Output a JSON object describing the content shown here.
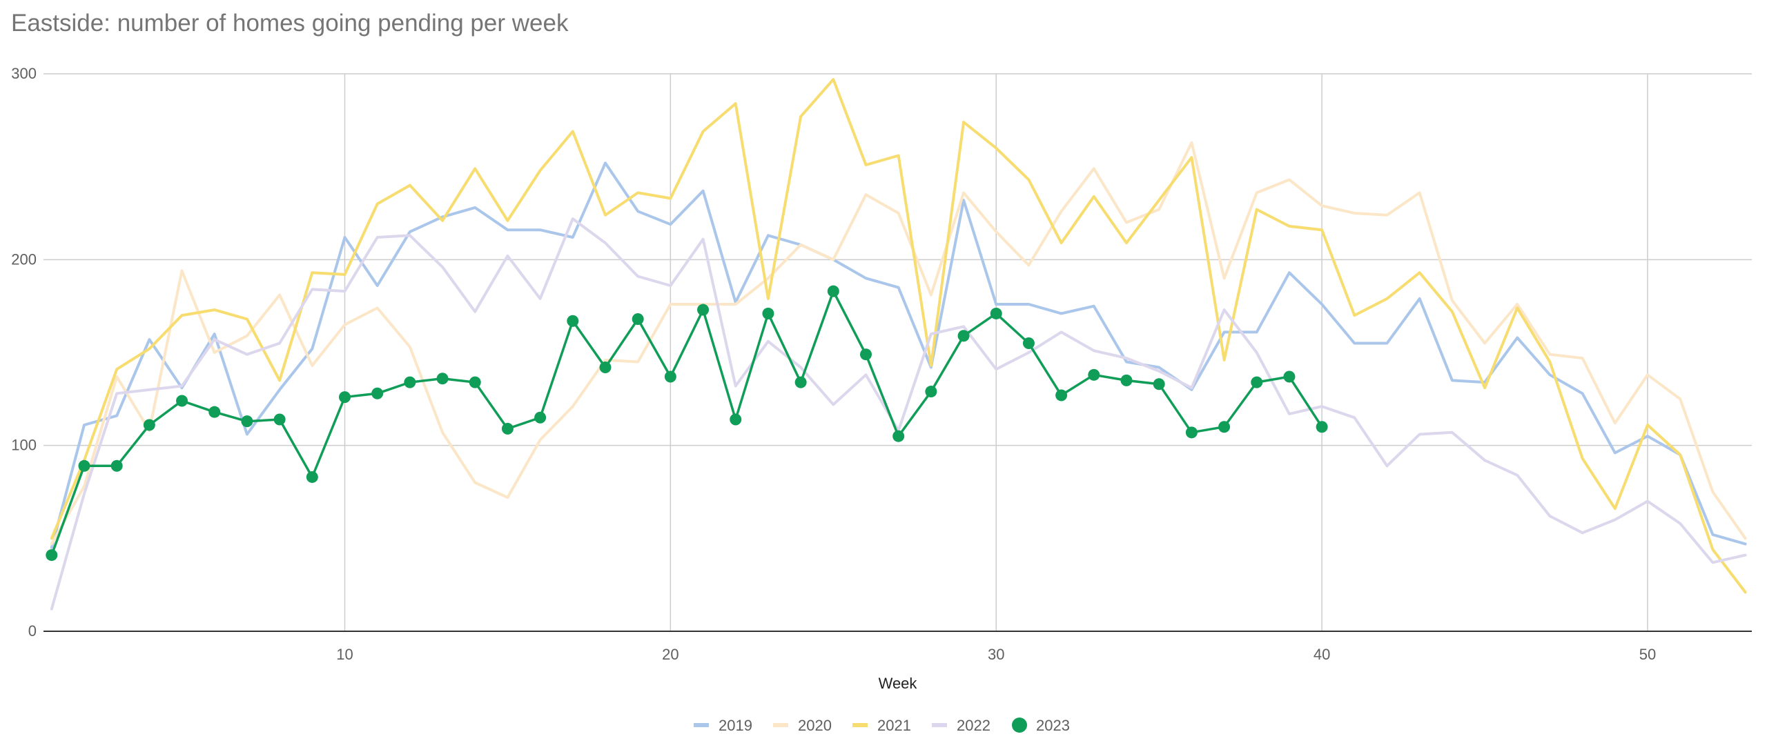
{
  "chart_data": {
    "type": "line",
    "title": "Eastside: number of homes going pending per week",
    "xlabel": "Week",
    "ylabel": "",
    "xlim": [
      0.75,
      53.2
    ],
    "ylim": [
      0,
      300
    ],
    "xticks": [
      10,
      20,
      30,
      40,
      50
    ],
    "yticks": [
      0,
      100,
      200,
      300
    ],
    "grid": true,
    "legend_position": "bottom",
    "series": [
      {
        "name": "2019",
        "color": "#aac6ea",
        "markers": false,
        "x": [
          1,
          2,
          3,
          4,
          5,
          6,
          7,
          8,
          9,
          10,
          11,
          12,
          13,
          14,
          15,
          16,
          17,
          18,
          19,
          20,
          21,
          22,
          23,
          24,
          25,
          26,
          27,
          28,
          29,
          30,
          31,
          32,
          33,
          34,
          35,
          36,
          37,
          38,
          39,
          40,
          41,
          42,
          43,
          44,
          45,
          46,
          47,
          48,
          49,
          50,
          51,
          52,
          53
        ],
        "values": [
          45,
          111,
          116,
          157,
          131,
          160,
          106,
          130,
          152,
          212,
          186,
          215,
          223,
          228,
          216,
          216,
          212,
          252,
          226,
          219,
          237,
          177,
          213,
          208,
          200,
          190,
          185,
          142,
          232,
          176,
          176,
          171,
          175,
          145,
          142,
          130,
          161,
          161,
          193,
          176,
          155,
          155,
          179,
          135,
          134,
          158,
          138,
          128,
          96,
          105,
          95,
          52,
          47
        ]
      },
      {
        "name": "2020",
        "color": "#fce6c8",
        "markers": false,
        "x": [
          1,
          2,
          3,
          4,
          5,
          6,
          7,
          8,
          9,
          10,
          11,
          12,
          13,
          14,
          15,
          16,
          17,
          18,
          19,
          20,
          21,
          22,
          23,
          24,
          25,
          26,
          27,
          28,
          29,
          30,
          31,
          32,
          33,
          34,
          35,
          36,
          37,
          38,
          39,
          40,
          41,
          42,
          43,
          44,
          45,
          46,
          47,
          48,
          49,
          50,
          51,
          52,
          53
        ],
        "values": [
          47,
          78,
          137,
          108,
          194,
          150,
          159,
          181,
          143,
          165,
          174,
          153,
          107,
          80,
          72,
          103,
          121,
          146,
          145,
          176,
          176,
          176,
          190,
          208,
          200,
          235,
          225,
          181,
          236,
          215,
          197,
          226,
          249,
          220,
          227,
          263,
          190,
          236,
          243,
          229,
          225,
          224,
          236,
          178,
          155,
          176,
          149,
          147,
          112,
          138,
          125,
          75,
          50
        ]
      },
      {
        "name": "2021",
        "color": "#f7dc6f",
        "markers": false,
        "x": [
          1,
          2,
          3,
          4,
          5,
          6,
          7,
          8,
          9,
          10,
          11,
          12,
          13,
          14,
          15,
          16,
          17,
          18,
          19,
          20,
          21,
          22,
          23,
          24,
          25,
          26,
          27,
          28,
          29,
          30,
          31,
          32,
          33,
          34,
          35,
          36,
          37,
          38,
          39,
          40,
          41,
          42,
          43,
          44,
          45,
          46,
          47,
          48,
          49,
          50,
          51,
          52,
          53
        ],
        "values": [
          50,
          92,
          141,
          152,
          170,
          173,
          168,
          135,
          193,
          192,
          230,
          240,
          221,
          249,
          221,
          248,
          269,
          224,
          236,
          233,
          269,
          284,
          179,
          277,
          297,
          251,
          256,
          143,
          274,
          260,
          243,
          209,
          234,
          209,
          232,
          255,
          146,
          227,
          218,
          216,
          170,
          179,
          193,
          172,
          131,
          174,
          145,
          93,
          66,
          111,
          95,
          44,
          21
        ]
      },
      {
        "name": "2022",
        "color": "#dcd7ec",
        "markers": false,
        "x": [
          1,
          2,
          3,
          4,
          5,
          6,
          7,
          8,
          9,
          10,
          11,
          12,
          13,
          14,
          15,
          16,
          17,
          18,
          19,
          20,
          21,
          22,
          23,
          24,
          25,
          26,
          27,
          28,
          29,
          30,
          31,
          32,
          33,
          34,
          35,
          36,
          37,
          38,
          39,
          40,
          41,
          42,
          43,
          44,
          45,
          46,
          47,
          48,
          49,
          50,
          51,
          52,
          53
        ],
        "values": [
          12,
          74,
          128,
          130,
          132,
          157,
          149,
          155,
          184,
          183,
          212,
          213,
          196,
          172,
          202,
          179,
          222,
          209,
          191,
          186,
          211,
          132,
          156,
          142,
          122,
          138,
          108,
          160,
          164,
          141,
          150,
          161,
          151,
          147,
          140,
          131,
          173,
          150,
          117,
          121,
          115,
          89,
          106,
          107,
          92,
          84,
          62,
          53,
          60,
          70,
          58,
          37,
          41
        ]
      },
      {
        "name": "2023",
        "color": "#0f9d58",
        "markers": true,
        "x": [
          1,
          2,
          3,
          4,
          5,
          6,
          7,
          8,
          9,
          10,
          11,
          12,
          13,
          14,
          15,
          16,
          17,
          18,
          19,
          20,
          21,
          22,
          23,
          24,
          25,
          26,
          27,
          28,
          29,
          30,
          31,
          32,
          33,
          34,
          35,
          36,
          37,
          38,
          39,
          40
        ],
        "values": [
          41,
          89,
          89,
          111,
          124,
          118,
          113,
          114,
          83,
          126,
          128,
          134,
          136,
          134,
          109,
          115,
          167,
          142,
          168,
          137,
          173,
          114,
          171,
          134,
          183,
          149,
          105,
          129,
          159,
          171,
          155,
          127,
          138,
          135,
          133,
          107,
          110,
          134,
          137,
          110
        ]
      }
    ]
  }
}
